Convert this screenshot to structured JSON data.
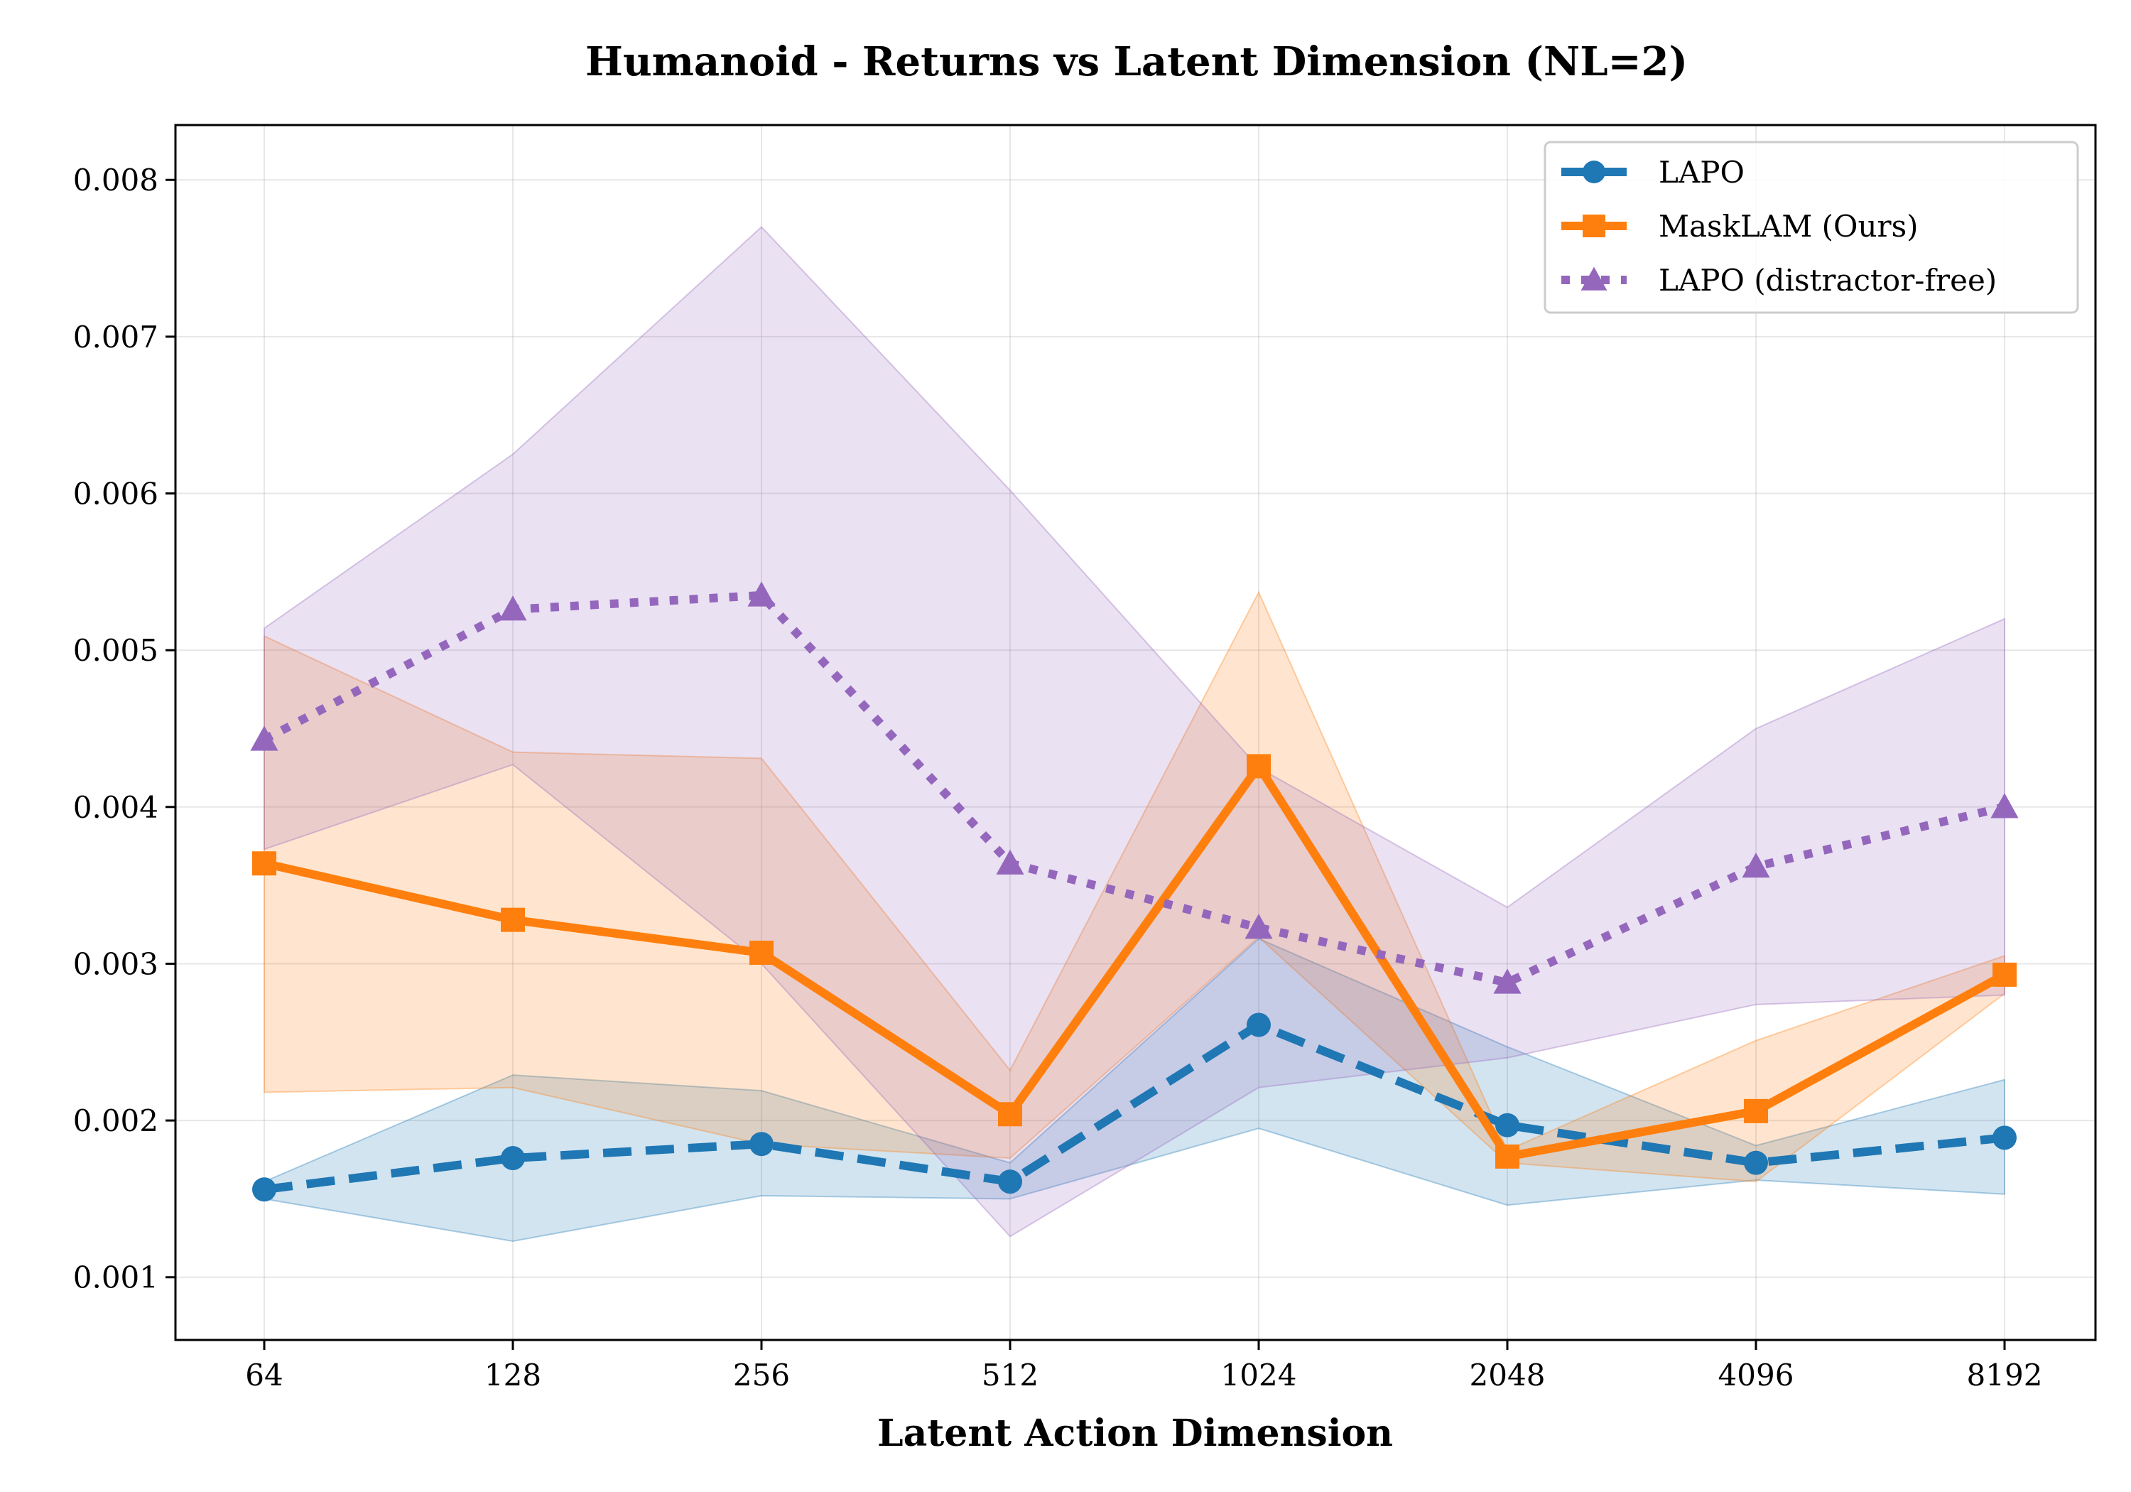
{
  "chart_data": {
    "type": "line",
    "title": "Humanoid - Returns vs Latent Dimension (NL=2)",
    "xlabel": "Latent Action Dimension",
    "ylabel": "",
    "categories": [
      "64",
      "128",
      "256",
      "512",
      "1024",
      "2048",
      "4096",
      "8192"
    ],
    "ylim": [
      0.0006,
      0.00835
    ],
    "yticks": [
      0.001,
      0.002,
      0.003,
      0.004,
      0.005,
      0.006,
      0.007,
      0.008
    ],
    "ytick_labels": [
      "0.001",
      "0.002",
      "0.003",
      "0.004",
      "0.005",
      "0.006",
      "0.007",
      "0.008"
    ],
    "grid": true,
    "legend_position": "top-right",
    "series": [
      {
        "name": "LAPO",
        "color": "#1f77b4",
        "linestyle": "dashed",
        "marker": "circle",
        "values": [
          0.00156,
          0.00176,
          0.00185,
          0.00161,
          0.00261,
          0.00197,
          0.00173,
          0.00189
        ],
        "lower": [
          0.0015,
          0.00123,
          0.00152,
          0.0015,
          0.00195,
          0.00146,
          0.00162,
          0.00153
        ],
        "upper": [
          0.00161,
          0.00229,
          0.00219,
          0.00173,
          0.00316,
          0.00247,
          0.00184,
          0.00226
        ]
      },
      {
        "name": "MaskLAM (Ours)",
        "color": "#ff7f0e",
        "linestyle": "solid",
        "marker": "square",
        "values": [
          0.00364,
          0.00328,
          0.00307,
          0.00204,
          0.00426,
          0.00177,
          0.00206,
          0.00293
        ],
        "lower": [
          0.00218,
          0.00221,
          0.00185,
          0.00176,
          0.00317,
          0.00173,
          0.00161,
          0.00281
        ],
        "upper": [
          0.00509,
          0.00435,
          0.00431,
          0.00232,
          0.00537,
          0.00181,
          0.00251,
          0.00305
        ]
      },
      {
        "name": "LAPO (distractor-free)",
        "color": "#9467bd",
        "linestyle": "dotted",
        "marker": "triangle",
        "values": [
          0.00443,
          0.00526,
          0.00535,
          0.00364,
          0.00323,
          0.00288,
          0.00362,
          0.004
        ],
        "lower": [
          0.00373,
          0.00427,
          0.003,
          0.00126,
          0.00221,
          0.0024,
          0.00274,
          0.0028
        ],
        "upper": [
          0.00514,
          0.00625,
          0.0077,
          0.00602,
          0.00425,
          0.00336,
          0.0045,
          0.0052
        ]
      }
    ]
  }
}
